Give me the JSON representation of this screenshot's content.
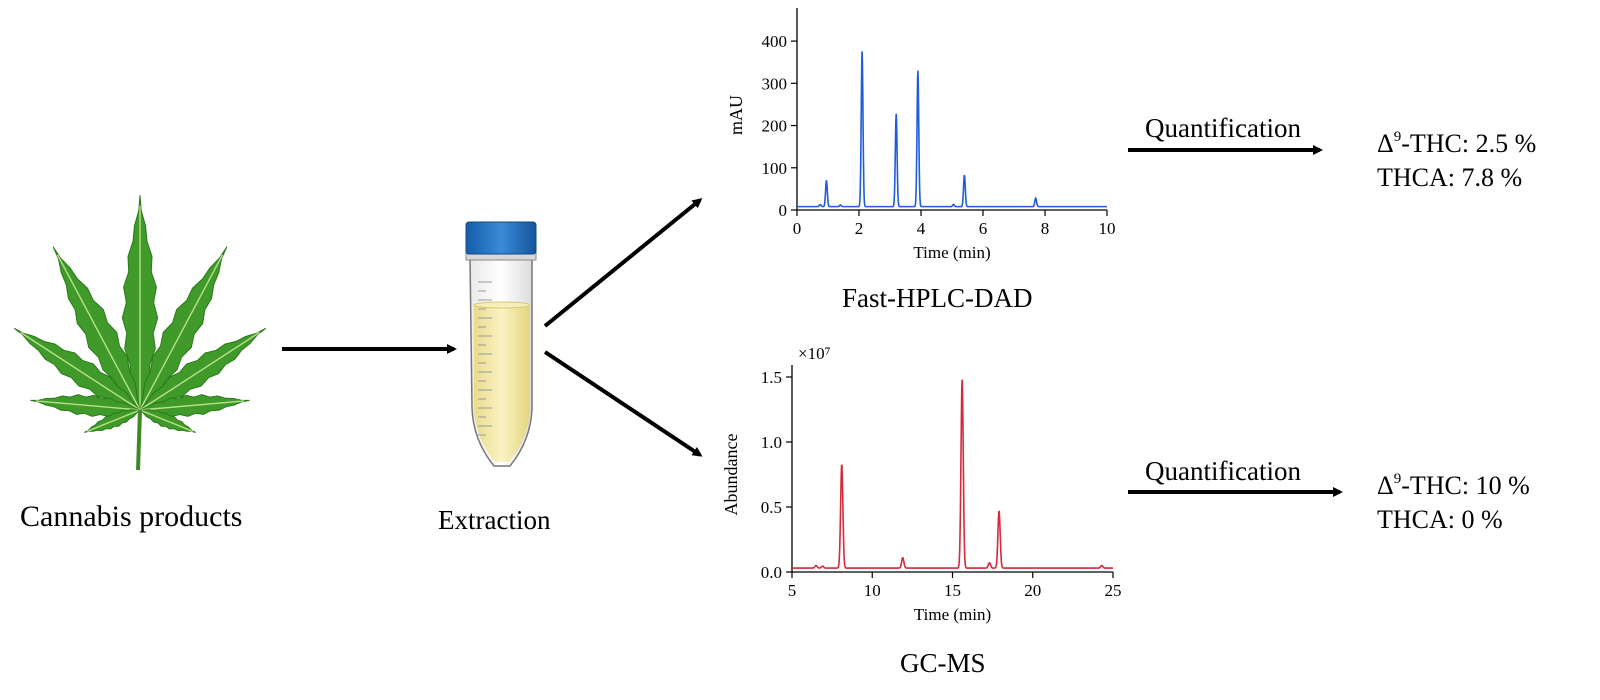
{
  "labels": {
    "source": "Cannabis products",
    "extraction": "Extraction",
    "method_top": "Fast-HPLC-DAD",
    "method_bottom": "GC-MS",
    "quant_top": "Quantification",
    "quant_bottom": "Quantification"
  },
  "results": {
    "top": {
      "thc_prefix": "Δ",
      "thc_sup": "9",
      "thc_label": "-THC: 2.5 %",
      "thca_label": "THCA: 7.8 %"
    },
    "bottom": {
      "thc_prefix": "Δ",
      "thc_sup": "9",
      "thc_label": "-THC: 10 %",
      "thca_label": "THCA: 0 %"
    }
  },
  "colors": {
    "hplc_line": "#1f5ddb",
    "gcms_line": "#d42a3c",
    "leaf": "#3f9a2a",
    "cap": "#1f6fc2",
    "liquid": "#f3e9a8"
  },
  "chart_data": [
    {
      "type": "line",
      "ylabel": "mAU",
      "xlabel": "Time (min)",
      "xlim": [
        0,
        10
      ],
      "ylim": [
        0,
        450
      ],
      "xticks": [
        0,
        2,
        4,
        6,
        8,
        10
      ],
      "yticks": [
        0,
        100,
        200,
        300,
        400
      ],
      "baseline": 8,
      "peaks": [
        {
          "x": 0.75,
          "y": 5
        },
        {
          "x": 0.95,
          "y": 62
        },
        {
          "x": 1.4,
          "y": 4
        },
        {
          "x": 2.1,
          "y": 368
        },
        {
          "x": 3.2,
          "y": 220
        },
        {
          "x": 3.9,
          "y": 322
        },
        {
          "x": 5.05,
          "y": 5
        },
        {
          "x": 5.4,
          "y": 75
        },
        {
          "x": 7.7,
          "y": 20
        }
      ],
      "grid": false,
      "color": "#1f5ddb"
    },
    {
      "type": "line",
      "ylabel": "Abundance",
      "xlabel": "Time (min)",
      "multiplier": "×10⁷",
      "xlim": [
        5,
        25
      ],
      "ylim": [
        0,
        1.5
      ],
      "xticks": [
        5,
        10,
        15,
        20,
        25
      ],
      "yticks": [
        "0.0",
        "0.5",
        "1.0",
        "1.5"
      ],
      "baseline": 0.03,
      "peaks": [
        {
          "x": 6.5,
          "y": 0.02
        },
        {
          "x": 6.9,
          "y": 0.015
        },
        {
          "x": 8.1,
          "y": 0.8
        },
        {
          "x": 11.9,
          "y": 0.08
        },
        {
          "x": 15.6,
          "y": 1.45
        },
        {
          "x": 17.3,
          "y": 0.04
        },
        {
          "x": 17.9,
          "y": 0.44
        },
        {
          "x": 24.3,
          "y": 0.02
        }
      ],
      "grid": false,
      "color": "#d42a3c"
    }
  ]
}
